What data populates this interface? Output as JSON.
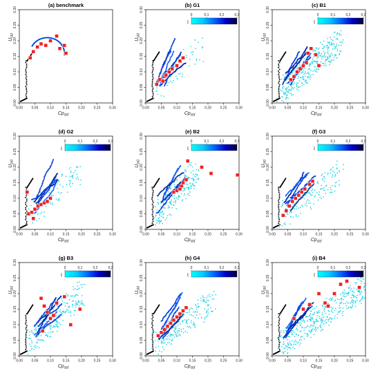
{
  "figure": {
    "x_label": "Cp",
    "x_label_sub": "std",
    "y_label": "U",
    "y_label_sub": "std",
    "x_ticks": [
      "0.00",
      "0.05",
      "0.10",
      "0.15",
      "0.20",
      "0.25",
      "0.30"
    ],
    "y_ticks": [
      "0.00",
      "0.05",
      "0.10",
      "0.15",
      "0.20",
      "0.25",
      "0.30"
    ],
    "colorbar_symbol": "ξ",
    "colorbar_ticks": [
      "0",
      "0.1",
      "0.2",
      "0.3"
    ],
    "colors": {
      "colorbar": [
        "#00ffff",
        "#00ccff",
        "#0066ff",
        "#0000cc",
        "#000033"
      ],
      "marker_fill": "#ee2222",
      "marker_stroke": "#ffffff",
      "black_points": "#000000"
    }
  },
  "chart_data": [
    {
      "type": "scatter",
      "title": "(a) benchmark",
      "colorbar": false,
      "xlim": [
        0,
        0.3
      ],
      "ylim": [
        0,
        0.3
      ],
      "grid": false,
      "spread": {
        "cyan_points": 0,
        "max_x": 0.15,
        "max_y": 0.22
      },
      "markers": [
        {
          "label": "",
          "x": 0.035,
          "y": 0.145
        },
        {
          "label": "",
          "x": 0.045,
          "y": 0.165
        },
        {
          "label": "",
          "x": 0.058,
          "y": 0.18
        },
        {
          "label": "",
          "x": 0.07,
          "y": 0.19
        },
        {
          "label": "",
          "x": 0.085,
          "y": 0.185
        },
        {
          "label": "",
          "x": 0.1,
          "y": 0.2
        },
        {
          "label": "",
          "x": 0.12,
          "y": 0.215
        },
        {
          "label": "",
          "x": 0.13,
          "y": 0.175
        },
        {
          "label": "",
          "x": 0.145,
          "y": 0.185
        },
        {
          "label": "",
          "x": 0.15,
          "y": 0.16
        }
      ]
    },
    {
      "type": "scatter",
      "title": "(b) G1",
      "colorbar": true,
      "xlim": [
        0,
        0.3
      ],
      "ylim": [
        0,
        0.3
      ],
      "grid": false,
      "spread": {
        "cyan_points": 60,
        "max_x": 0.18,
        "max_y": 0.22
      },
      "markers": [
        {
          "label": "",
          "x": 0.035,
          "y": 0.06
        },
        {
          "label": "",
          "x": 0.045,
          "y": 0.075
        },
        {
          "label": "",
          "x": 0.055,
          "y": 0.07
        },
        {
          "label": "",
          "x": 0.06,
          "y": 0.085
        },
        {
          "label": "",
          "x": 0.065,
          "y": 0.09
        },
        {
          "label": "",
          "x": 0.075,
          "y": 0.1
        },
        {
          "label": "",
          "x": 0.085,
          "y": 0.11
        },
        {
          "label": "",
          "x": 0.1,
          "y": 0.12
        },
        {
          "label": "",
          "x": 0.11,
          "y": 0.135
        },
        {
          "label": "",
          "x": 0.12,
          "y": 0.145
        }
      ]
    },
    {
      "type": "scatter",
      "title": "(c) B1",
      "colorbar": true,
      "xlim": [
        0,
        0.3
      ],
      "ylim": [
        0,
        0.3
      ],
      "grid": false,
      "spread": {
        "cyan_points": 360,
        "max_x": 0.22,
        "max_y": 0.24
      },
      "markers": [
        {
          "label": "",
          "x": 0.06,
          "y": 0.075
        },
        {
          "label": "",
          "x": 0.07,
          "y": 0.085
        },
        {
          "label": "",
          "x": 0.08,
          "y": 0.1
        },
        {
          "label": "",
          "x": 0.09,
          "y": 0.11
        },
        {
          "label": "",
          "x": 0.1,
          "y": 0.12
        },
        {
          "label": "",
          "x": 0.11,
          "y": 0.13
        },
        {
          "label": "",
          "x": 0.115,
          "y": 0.16
        },
        {
          "label": "",
          "x": 0.125,
          "y": 0.175
        },
        {
          "label": "",
          "x": 0.14,
          "y": 0.155
        },
        {
          "label": "",
          "x": 0.15,
          "y": 0.12
        }
      ]
    },
    {
      "type": "scatter",
      "title": "(d) G2",
      "colorbar": true,
      "xlim": [
        0,
        0.3
      ],
      "ylim": [
        0,
        0.3
      ],
      "grid": false,
      "spread": {
        "cyan_points": 90,
        "max_x": 0.19,
        "max_y": 0.22
      },
      "markers": [
        {
          "label": "",
          "x": 0.03,
          "y": 0.05
        },
        {
          "label": "",
          "x": 0.04,
          "y": 0.055
        },
        {
          "label": "",
          "x": 0.05,
          "y": 0.065
        },
        {
          "label": "",
          "x": 0.06,
          "y": 0.075
        },
        {
          "label": "",
          "x": 0.07,
          "y": 0.08
        },
        {
          "label": "",
          "x": 0.08,
          "y": 0.085
        },
        {
          "label": "",
          "x": 0.09,
          "y": 0.09
        },
        {
          "label": "",
          "x": 0.1,
          "y": 0.1
        },
        {
          "label": "",
          "x": 0.025,
          "y": 0.12
        },
        {
          "label": "",
          "x": 0.045,
          "y": 0.035
        }
      ]
    },
    {
      "type": "scatter",
      "title": "(e) B2",
      "colorbar": true,
      "xlim": [
        0,
        0.3
      ],
      "ylim": [
        0,
        0.3
      ],
      "grid": false,
      "spread": {
        "cyan_points": 220,
        "max_x": 0.16,
        "max_y": 0.22
      },
      "markers": [
        {
          "label": "",
          "x": 0.09,
          "y": 0.12
        },
        {
          "label": "",
          "x": 0.1,
          "y": 0.125
        },
        {
          "label": "",
          "x": 0.11,
          "y": 0.13
        },
        {
          "label": "",
          "x": 0.115,
          "y": 0.14
        },
        {
          "label": "",
          "x": 0.12,
          "y": 0.15
        },
        {
          "label": "",
          "x": 0.13,
          "y": 0.16
        },
        {
          "label": "",
          "x": 0.135,
          "y": 0.22
        },
        {
          "label": "",
          "x": 0.18,
          "y": 0.2
        },
        {
          "label": "",
          "x": 0.21,
          "y": 0.18
        },
        {
          "label": "",
          "x": 0.295,
          "y": 0.175
        }
      ]
    },
    {
      "type": "scatter",
      "title": "(f) G3",
      "colorbar": true,
      "xlim": [
        0,
        0.3
      ],
      "ylim": [
        0,
        0.3
      ],
      "grid": false,
      "spread": {
        "cyan_points": 160,
        "max_x": 0.22,
        "max_y": 0.22
      },
      "markers": [
        {
          "label": "",
          "x": 0.035,
          "y": 0.045
        },
        {
          "label": "",
          "x": 0.045,
          "y": 0.06
        },
        {
          "label": "",
          "x": 0.055,
          "y": 0.075
        },
        {
          "label": "",
          "x": 0.065,
          "y": 0.09
        },
        {
          "label": "",
          "x": 0.075,
          "y": 0.1
        },
        {
          "label": "",
          "x": 0.085,
          "y": 0.11
        },
        {
          "label": "",
          "x": 0.095,
          "y": 0.12
        },
        {
          "label": "",
          "x": 0.105,
          "y": 0.13
        },
        {
          "label": "",
          "x": 0.12,
          "y": 0.145
        },
        {
          "label": "",
          "x": 0.13,
          "y": 0.155
        }
      ]
    },
    {
      "type": "scatter",
      "title": "(g) B3",
      "colorbar": true,
      "xlim": [
        0,
        0.3
      ],
      "ylim": [
        0,
        0.3
      ],
      "grid": false,
      "spread": {
        "cyan_points": 220,
        "max_x": 0.2,
        "max_y": 0.24
      },
      "markers": [
        {
          "label": "",
          "x": 0.07,
          "y": 0.185
        },
        {
          "label": "",
          "x": 0.08,
          "y": 0.16
        },
        {
          "label": "",
          "x": 0.09,
          "y": 0.14
        },
        {
          "label": "",
          "x": 0.1,
          "y": 0.12
        },
        {
          "label": "",
          "x": 0.11,
          "y": 0.13
        },
        {
          "label": "",
          "x": 0.12,
          "y": 0.17
        },
        {
          "label": "",
          "x": 0.145,
          "y": 0.19
        },
        {
          "label": "",
          "x": 0.165,
          "y": 0.1
        },
        {
          "label": "",
          "x": 0.195,
          "y": 0.15
        },
        {
          "label": "",
          "x": 0.075,
          "y": 0.08
        }
      ]
    },
    {
      "type": "scatter",
      "title": "(h) G4",
      "colorbar": true,
      "xlim": [
        0,
        0.3
      ],
      "ylim": [
        0,
        0.3
      ],
      "grid": false,
      "spread": {
        "cyan_points": 220,
        "max_x": 0.22,
        "max_y": 0.22
      },
      "markers": [
        {
          "label": "",
          "x": 0.04,
          "y": 0.065
        },
        {
          "label": "",
          "x": 0.05,
          "y": 0.075
        },
        {
          "label": "",
          "x": 0.06,
          "y": 0.085
        },
        {
          "label": "",
          "x": 0.07,
          "y": 0.095
        },
        {
          "label": "",
          "x": 0.08,
          "y": 0.105
        },
        {
          "label": "",
          "x": 0.09,
          "y": 0.115
        },
        {
          "label": "",
          "x": 0.1,
          "y": 0.125
        },
        {
          "label": "",
          "x": 0.11,
          "y": 0.135
        },
        {
          "label": "",
          "x": 0.12,
          "y": 0.145
        },
        {
          "label": "",
          "x": 0.13,
          "y": 0.155
        }
      ]
    },
    {
      "type": "scatter",
      "title": "(i) B4",
      "colorbar": true,
      "xlim": [
        0,
        0.3
      ],
      "ylim": [
        0,
        0.3
      ],
      "grid": false,
      "spread": {
        "cyan_points": 420,
        "max_x": 0.3,
        "max_y": 0.26
      },
      "markers": [
        {
          "label": "",
          "x": 0.07,
          "y": 0.12
        },
        {
          "label": "",
          "x": 0.1,
          "y": 0.15
        },
        {
          "label": "",
          "x": 0.12,
          "y": 0.165
        },
        {
          "label": "",
          "x": 0.15,
          "y": 0.2
        },
        {
          "label": "",
          "x": 0.17,
          "y": 0.17
        },
        {
          "label": "",
          "x": 0.2,
          "y": 0.2
        },
        {
          "label": "",
          "x": 0.22,
          "y": 0.23
        },
        {
          "label": "",
          "x": 0.24,
          "y": 0.24
        },
        {
          "label": "",
          "x": 0.28,
          "y": 0.22
        },
        {
          "label": "",
          "x": 0.18,
          "y": 0.16
        }
      ]
    }
  ]
}
